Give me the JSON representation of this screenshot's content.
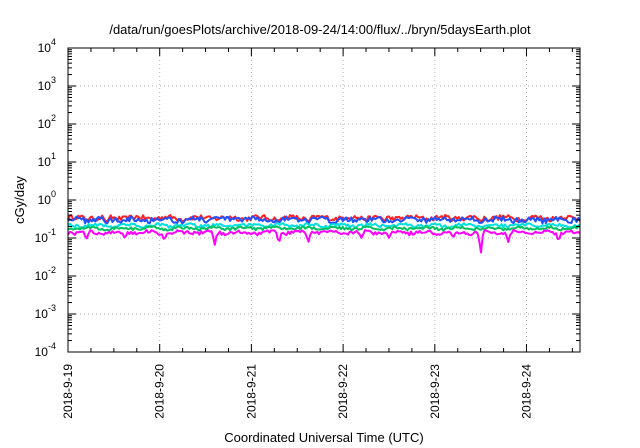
{
  "chart_data": {
    "type": "line",
    "title": "/data/run/goesPlots/archive/2018-09-24/14:00/flux/../bryn/5daysEarth.plot",
    "xlabel": "Coordinated Universal Time (UTC)",
    "ylabel": "cGy/day",
    "y_scale": "log",
    "ylim": [
      0.0001,
      10000
    ],
    "y_ticks": [
      {
        "base": "10",
        "exp": "-4",
        "value": 0.0001
      },
      {
        "base": "10",
        "exp": "-3",
        "value": 0.001
      },
      {
        "base": "10",
        "exp": "-2",
        "value": 0.01
      },
      {
        "base": "10",
        "exp": "-1",
        "value": 0.1
      },
      {
        "base": "10",
        "exp": "0",
        "value": 1
      },
      {
        "base": "10",
        "exp": "1",
        "value": 10
      },
      {
        "base": "10",
        "exp": "2",
        "value": 100
      },
      {
        "base": "10",
        "exp": "3",
        "value": 1000
      },
      {
        "base": "10",
        "exp": "4",
        "value": 10000
      }
    ],
    "xlim": [
      "2018-09-19T00:00",
      "2018-09-24T14:00"
    ],
    "x_ticks": [
      "2018-9-19",
      "2018-9-20",
      "2018-9-21",
      "2018-9-22",
      "2018-9-23",
      "2018-9-24"
    ],
    "grid": true,
    "legend": "none",
    "series": [
      {
        "color": "#ff2020",
        "base": 0.34,
        "amp": 0.05,
        "dips": [
          [
            0.42,
            0.25
          ],
          [
            1.25,
            0.26
          ],
          [
            2.3,
            0.27
          ],
          [
            2.62,
            0.26
          ],
          [
            3.45,
            0.27
          ],
          [
            4.5,
            0.27
          ],
          [
            4.98,
            0.27
          ]
        ]
      },
      {
        "color": "#2050ff",
        "base": 0.31,
        "amp": 0.05,
        "dips": [
          [
            0.42,
            0.22
          ],
          [
            1.25,
            0.23
          ],
          [
            2.3,
            0.24
          ],
          [
            2.62,
            0.23
          ],
          [
            3.45,
            0.24
          ],
          [
            4.5,
            0.24
          ],
          [
            4.98,
            0.24
          ]
        ]
      },
      {
        "color": "#00e0e0",
        "base": 0.215,
        "amp": 0.02,
        "dips": []
      },
      {
        "color": "#00c060",
        "base": 0.18,
        "amp": 0.015,
        "dips": []
      },
      {
        "color": "#ff00ff",
        "base": 0.14,
        "amp": 0.015,
        "dips": [
          [
            0.2,
            0.09
          ],
          [
            0.62,
            0.095
          ],
          [
            1.05,
            0.08
          ],
          [
            1.6,
            0.065
          ],
          [
            2.3,
            0.065
          ],
          [
            2.62,
            0.07
          ],
          [
            3.2,
            0.1
          ],
          [
            3.5,
            0.1
          ],
          [
            4.2,
            0.1
          ],
          [
            4.5,
            0.027
          ],
          [
            4.8,
            0.075
          ],
          [
            5.35,
            0.075
          ]
        ]
      }
    ]
  }
}
